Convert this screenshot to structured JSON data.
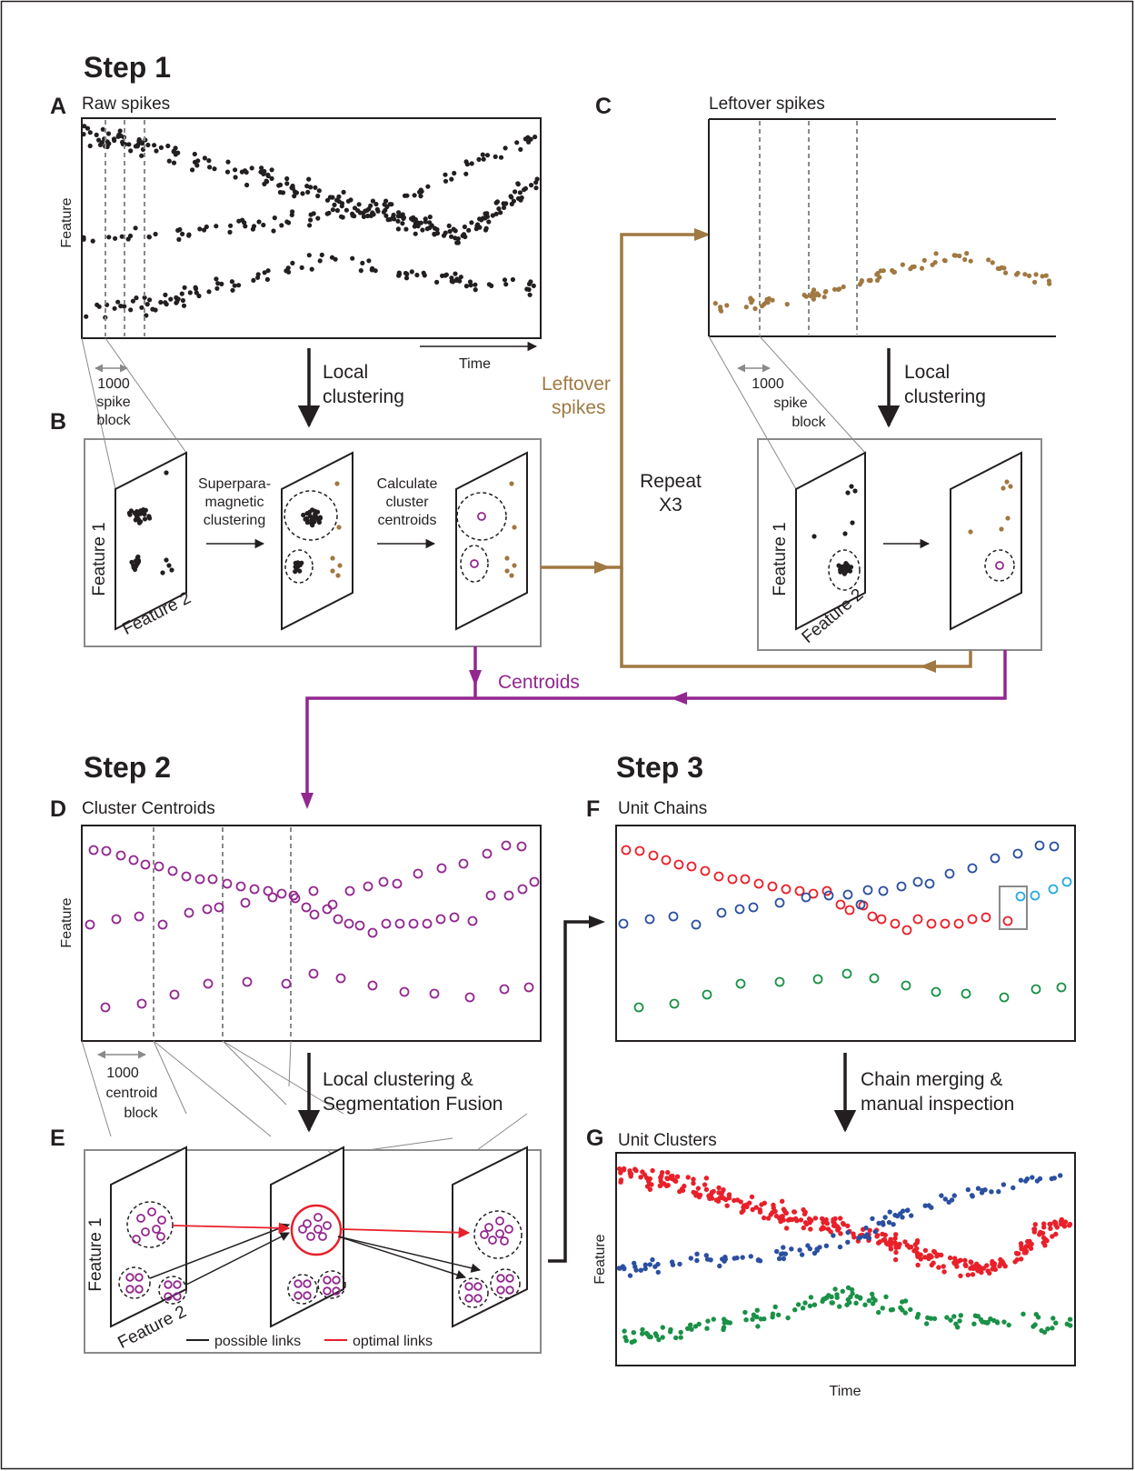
{
  "steps": {
    "step1": "Step 1",
    "step2": "Step 2",
    "step3": "Step 3"
  },
  "panels": {
    "A": {
      "letter": "A",
      "title": "Raw spikes",
      "y_axis": "Feature",
      "x_axis": "Time"
    },
    "B": {
      "letter": "B",
      "axis1": "Feature 1",
      "axis2": "Feature 2",
      "method": [
        "Superpara-",
        "magnetic",
        "clustering"
      ],
      "centroid_step": [
        "Calculate",
        "cluster",
        "centroids"
      ]
    },
    "C": {
      "letter": "C",
      "title": "Leftover spikes"
    },
    "D": {
      "letter": "D",
      "title": "Cluster Centroids",
      "y_axis": "Feature"
    },
    "E": {
      "letter": "E",
      "axis1": "Feature 1",
      "axis2": "Feature 2",
      "legend_possible": "possible links",
      "legend_optimal": "optimal links"
    },
    "F": {
      "letter": "F",
      "title": "Unit Chains"
    },
    "G": {
      "letter": "G",
      "title": "Unit Clusters",
      "y_axis": "Feature",
      "x_axis": "Time"
    }
  },
  "flow": {
    "local_clustering": [
      "Local",
      "clustering"
    ],
    "spike_block": [
      "1000",
      "spike",
      "block"
    ],
    "centroid_block": [
      "1000",
      "centroid",
      "block"
    ],
    "leftover": [
      "Leftover",
      "spikes"
    ],
    "repeat": [
      "Repeat",
      "X3"
    ],
    "centroids": "Centroids",
    "segmentation": [
      "Local clustering &",
      "Segmentation Fusion"
    ],
    "merging": [
      "Chain merging &",
      "manual inspection"
    ]
  },
  "colors": {
    "brown": "#a07841",
    "purple": "#92278f",
    "red": "#e8202a",
    "blue": "#2b4fa0",
    "cyan": "#27aae1",
    "green": "#1a9147",
    "grey": "#8a8a8a",
    "black": "#231f20"
  }
}
